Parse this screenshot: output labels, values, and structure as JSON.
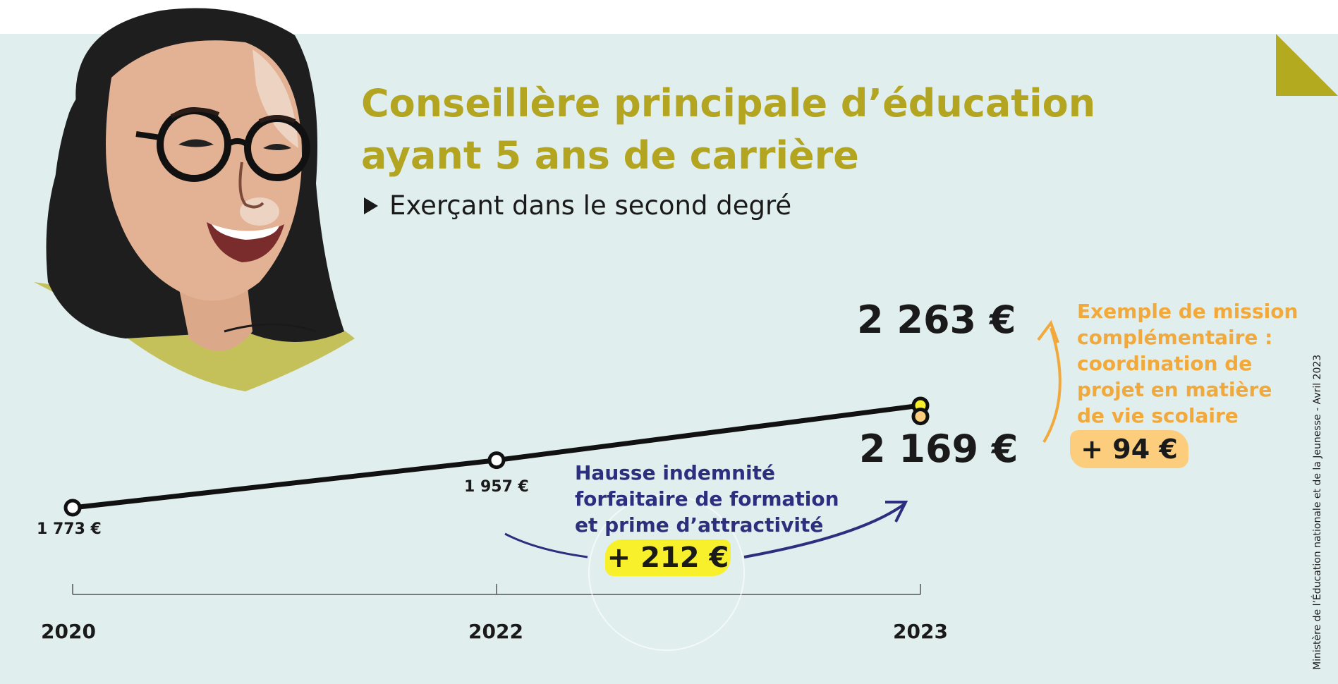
{
  "header": {
    "title_line1": "Conseillère principale d’éducation",
    "title_line2": "ayant 5 ans de carrière",
    "subtitle": "Exerçant dans le second degré"
  },
  "chart_data": {
    "type": "line",
    "x": [
      "2020",
      "2022",
      "2023"
    ],
    "series": [
      {
        "values": [
          1773,
          1957,
          2169
        ]
      }
    ],
    "extra_point": {
      "x": "2023",
      "value": 2263
    },
    "value_labels": [
      "1 773 €",
      "1 957 €",
      "2 169 €",
      "2 263 €"
    ],
    "annotations": [
      {
        "text": "Hausse indemnité forfaitaire de formation et prime d’attractivité",
        "badge": "+ 212 €"
      },
      {
        "text": "Exemple de mission complémentaire : coordination de projet en matière de vie scolaire",
        "badge": "+ 94 €"
      }
    ]
  },
  "labels": {
    "v2020": "1 773 €",
    "v2022": "1 957 €",
    "v2023": "2 169 €",
    "v2023_top": "2 263 €",
    "y2020": "2020",
    "y2022": "2022",
    "y2023": "2023"
  },
  "notes": {
    "blue_line1": "Hausse indemnité",
    "blue_line2": "forfaitaire de formation",
    "blue_line3": "et prime d’attractivité",
    "blue_badge": "+ 212 €",
    "orange_line1": "Exemple de mission",
    "orange_line2": "complémentaire :",
    "orange_line3": "coordination de",
    "orange_line4": "projet en matière",
    "orange_line5": "de vie scolaire",
    "orange_badge": "+ 94 €"
  },
  "credit": "Ministère de l’Éducation nationale et de la Jeunesse - Avril 2023",
  "colors": {
    "background": "#e0eeee",
    "title": "#b3a51f",
    "blue": "#2b2f7e",
    "orange": "#f2a93b",
    "highlight_yellow": "#f7f02a",
    "highlight_orange": "#fbcd7c",
    "corner": "#b3aa1f"
  }
}
